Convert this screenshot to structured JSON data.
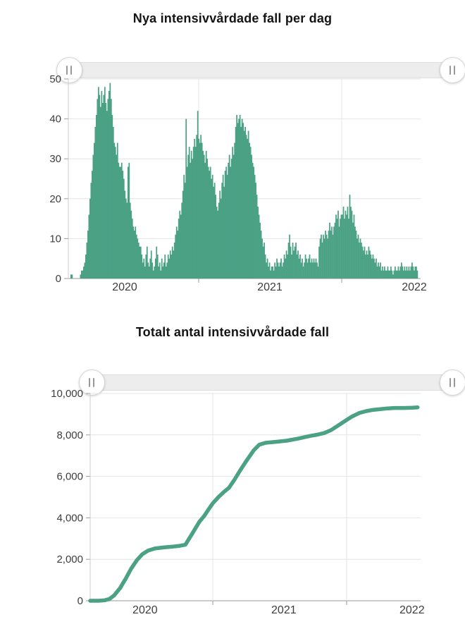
{
  "page": {
    "background": "#ffffff"
  },
  "theme": {
    "accent": "#4aa184",
    "grid": "#e4e4e4",
    "axis_line": "#cccccc",
    "baseline": "#999999",
    "tick": "#9b9b9b",
    "label_color": "#3d3d3d",
    "slider_track": "#ededed",
    "handle_bg": "#ffffff",
    "handle_grip": "#999999"
  },
  "icons": {
    "slider_handle": "drag-handle-vertical-bars"
  },
  "chart_data": [
    {
      "type": "bar",
      "title": "Nya intensivvårdade fall per dag",
      "ylim": [
        0,
        50
      ],
      "y_ticks": [
        {
          "label": "50",
          "value": 50
        },
        {
          "label": "40",
          "value": 40
        },
        {
          "label": "30",
          "value": 30
        },
        {
          "label": "20",
          "value": 20
        },
        {
          "label": "10",
          "value": 10
        },
        {
          "label": "0",
          "value": 0
        }
      ],
      "x_tick_labels": [
        {
          "label": "2020",
          "f": 0.16
        },
        {
          "label": "2021",
          "f": 0.572
        },
        {
          "label": "2022",
          "f": 0.982
        }
      ],
      "x_gridlines": [
        0.37,
        0.776
      ],
      "grid": true,
      "legend": "none",
      "bars_f_start": 0.0,
      "bars_f_end": 0.992,
      "values": [
        0,
        0,
        1,
        1,
        0,
        0,
        0,
        0,
        0,
        0,
        0,
        1,
        2,
        2,
        3,
        4,
        6,
        9,
        12,
        16,
        20,
        24,
        27,
        31,
        34,
        38,
        41,
        45,
        48,
        46,
        43,
        47,
        44,
        46,
        48,
        44,
        42,
        45,
        47,
        49,
        45,
        41,
        38,
        34,
        33,
        31,
        34,
        29,
        28,
        28,
        29,
        27,
        25,
        22,
        20,
        19,
        28,
        29,
        19,
        17,
        15,
        13,
        12,
        13,
        11,
        10,
        9,
        8,
        8,
        6,
        4,
        5,
        3,
        6,
        8,
        4,
        3,
        5,
        7,
        4,
        2,
        3,
        5,
        8,
        6,
        3,
        4,
        2,
        5,
        3,
        4,
        6,
        3,
        4,
        6,
        5,
        7,
        6,
        8,
        7,
        9,
        11,
        13,
        12,
        15,
        17,
        16,
        19,
        22,
        26,
        24,
        40,
        28,
        31,
        33,
        29,
        32,
        30,
        33,
        35,
        33,
        36,
        42,
        35,
        34,
        36,
        34,
        32,
        31,
        29,
        32,
        30,
        28,
        27,
        28,
        25,
        26,
        23,
        24,
        21,
        18,
        17,
        19,
        22,
        20,
        24,
        26,
        23,
        27,
        28,
        26,
        29,
        31,
        28,
        30,
        33,
        31,
        34,
        38,
        41,
        39,
        40,
        41,
        38,
        40,
        39,
        37,
        38,
        36,
        35,
        37,
        34,
        33,
        31,
        29,
        28,
        26,
        24,
        21,
        18,
        16,
        14,
        12,
        10,
        8,
        9,
        6,
        4,
        5,
        3,
        4,
        2,
        3,
        3,
        2,
        4,
        3,
        5,
        4,
        3,
        4,
        5,
        3,
        4,
        6,
        5,
        7,
        6,
        9,
        11,
        8,
        6,
        9,
        7,
        8,
        9,
        6,
        7,
        5,
        6,
        4,
        5,
        3,
        4,
        6,
        5,
        4,
        5,
        6,
        4,
        5,
        4,
        5,
        4,
        5,
        4,
        3,
        8,
        10,
        11,
        9,
        11,
        10,
        12,
        11,
        10,
        12,
        14,
        12,
        13,
        11,
        13,
        14,
        16,
        15,
        17,
        13,
        15,
        16,
        16,
        18,
        15,
        17,
        16,
        18,
        15,
        21,
        18,
        17,
        14,
        16,
        13,
        12,
        10,
        11,
        9,
        10,
        9,
        8,
        7,
        8,
        6,
        7,
        6,
        8,
        7,
        6,
        5,
        6,
        5,
        4,
        5,
        3,
        4,
        3,
        4,
        2,
        3,
        2,
        3,
        2,
        2,
        3,
        2,
        2,
        3,
        2,
        1,
        2,
        3,
        2,
        2,
        3,
        2,
        3,
        4,
        3,
        2,
        3,
        2,
        3,
        2,
        3,
        2,
        3,
        4,
        3,
        2,
        3,
        3,
        2
      ]
    },
    {
      "type": "line",
      "title": "Totalt antal intensivvårdade fall",
      "ylim": [
        0,
        10000
      ],
      "y_ticks": [
        {
          "label": "10,000",
          "value": 10000
        },
        {
          "label": "8,000",
          "value": 8000
        },
        {
          "label": "6,000",
          "value": 6000
        },
        {
          "label": "4,000",
          "value": 4000
        },
        {
          "label": "2,000",
          "value": 2000
        },
        {
          "label": "0",
          "value": 0
        }
      ],
      "x_tick_labels": [
        {
          "label": "2020",
          "f": 0.166
        },
        {
          "label": "2021",
          "f": 0.586
        },
        {
          "label": "2022",
          "f": 0.974
        }
      ],
      "x_gridlines": [
        0.371,
        0.776
      ],
      "grid": true,
      "legend": "none",
      "points": [
        [
          0.0,
          0
        ],
        [
          0.026,
          0
        ],
        [
          0.043,
          20
        ],
        [
          0.058,
          80
        ],
        [
          0.072,
          250
        ],
        [
          0.09,
          600
        ],
        [
          0.107,
          1050
        ],
        [
          0.124,
          1550
        ],
        [
          0.141,
          1950
        ],
        [
          0.158,
          2250
        ],
        [
          0.175,
          2420
        ],
        [
          0.196,
          2520
        ],
        [
          0.222,
          2570
        ],
        [
          0.249,
          2610
        ],
        [
          0.271,
          2650
        ],
        [
          0.288,
          2700
        ],
        [
          0.309,
          3240
        ],
        [
          0.33,
          3800
        ],
        [
          0.345,
          4090
        ],
        [
          0.358,
          4400
        ],
        [
          0.371,
          4700
        ],
        [
          0.388,
          5000
        ],
        [
          0.405,
          5250
        ],
        [
          0.42,
          5450
        ],
        [
          0.437,
          5850
        ],
        [
          0.452,
          6240
        ],
        [
          0.473,
          6750
        ],
        [
          0.495,
          7260
        ],
        [
          0.512,
          7530
        ],
        [
          0.531,
          7620
        ],
        [
          0.559,
          7660
        ],
        [
          0.595,
          7720
        ],
        [
          0.629,
          7820
        ],
        [
          0.665,
          7950
        ],
        [
          0.687,
          8010
        ],
        [
          0.708,
          8090
        ],
        [
          0.729,
          8230
        ],
        [
          0.751,
          8460
        ],
        [
          0.772,
          8680
        ],
        [
          0.793,
          8890
        ],
        [
          0.815,
          9060
        ],
        [
          0.836,
          9150
        ],
        [
          0.857,
          9210
        ],
        [
          0.878,
          9240
        ],
        [
          0.9,
          9280
        ],
        [
          0.921,
          9300
        ],
        [
          0.949,
          9300
        ],
        [
          0.975,
          9310
        ],
        [
          0.991,
          9330
        ]
      ]
    }
  ]
}
